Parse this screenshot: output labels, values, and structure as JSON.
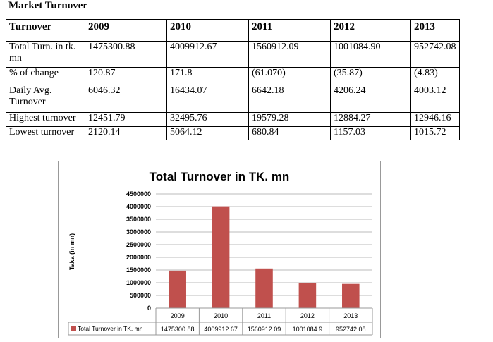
{
  "heading": "Market Turnover",
  "table": {
    "headers": [
      "Turnover",
      "2009",
      "2010",
      "2011",
      "2012",
      "2013"
    ],
    "rows": [
      [
        "Total Turn. in tk. mn",
        "1475300.88",
        "4009912.67",
        "1560912.09",
        "1001084.90",
        "952742.08"
      ],
      [
        "% of change",
        "120.87",
        "171.8",
        "(61.070)",
        "(35.87)",
        "(4.83)"
      ],
      [
        "Daily Avg. Turnover",
        "6046.32",
        "16434.07",
        "6642.18",
        "4206.24",
        "4003.12"
      ],
      [
        "Highest turnover",
        "12451.79",
        "32495.76",
        "19579.28",
        "12884.27",
        "12946.16"
      ],
      [
        "Lowest turnover",
        "2120.14",
        "5064.12",
        "680.84",
        "1157.03",
        "1015.72"
      ]
    ]
  },
  "chart_data": {
    "type": "bar",
    "title": "Total Turnover in TK. mn",
    "ylabel": "Taka (in mn)",
    "xlabel": "",
    "categories": [
      "2009",
      "2010",
      "2011",
      "2012",
      "2013"
    ],
    "series": [
      {
        "name": "Total Turnover in TK. mn",
        "values": [
          1475300.88,
          4009912.67,
          1560912.09,
          1001084.9,
          952742.08
        ],
        "labels": [
          "1475300.88",
          "4009912.67",
          "1560912.09",
          "1001084.9",
          "952742.08"
        ],
        "color": "#c0504d"
      }
    ],
    "ylim": [
      0,
      4500000
    ],
    "yticks": [
      "0",
      "500000",
      "1000000",
      "1500000",
      "2000000",
      "2500000",
      "3000000",
      "3500000",
      "4000000",
      "4500000"
    ],
    "grid": true,
    "legend": "data-table"
  }
}
